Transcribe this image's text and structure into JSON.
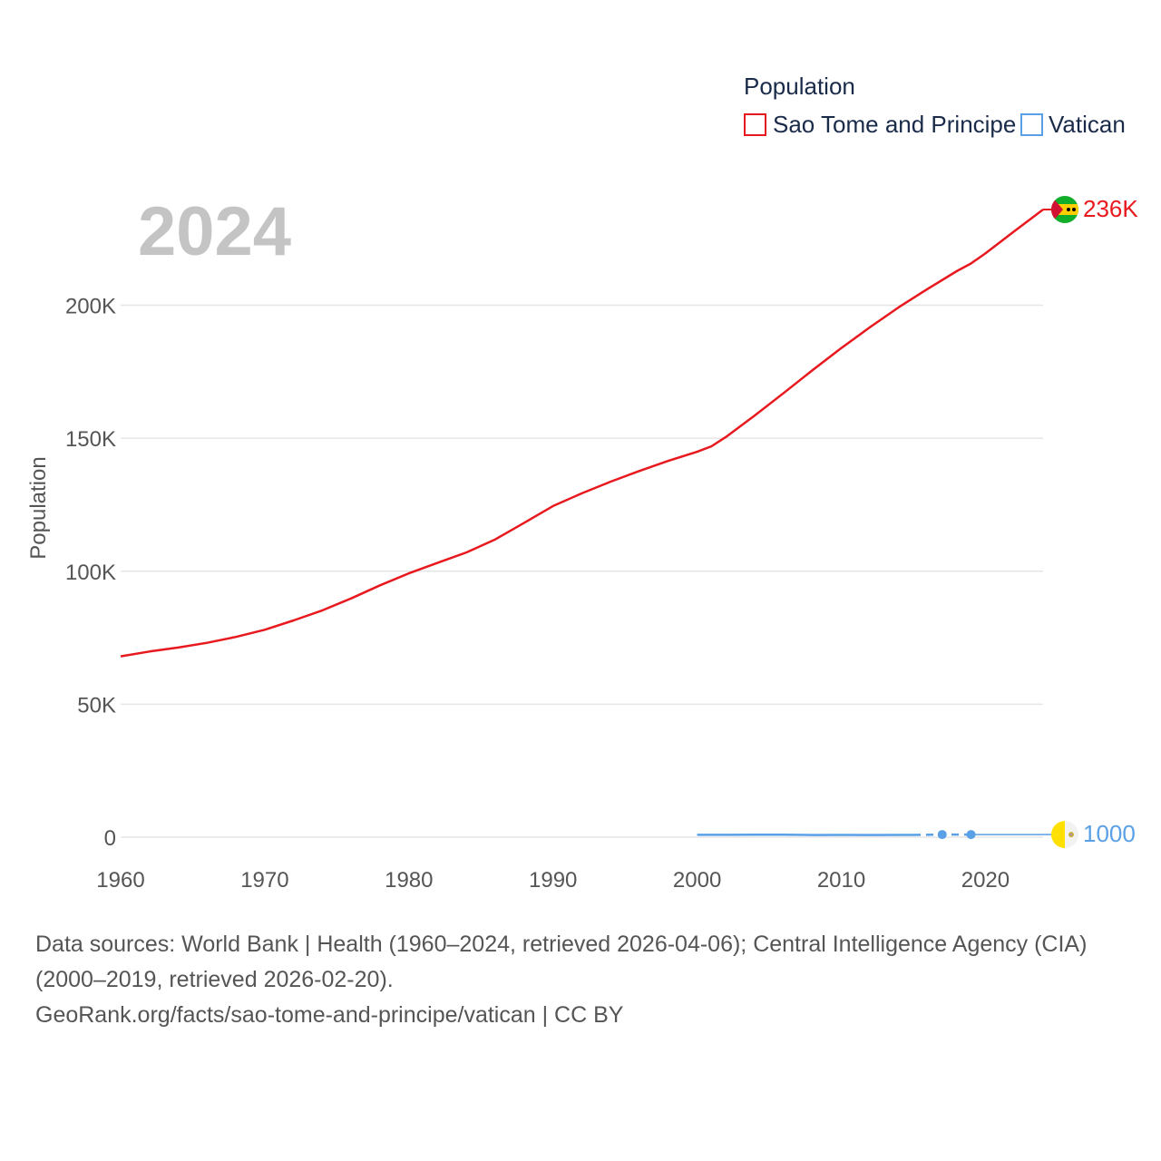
{
  "chart_data": {
    "type": "line",
    "year_label": "2024",
    "ylabel": "Population",
    "ylim": [
      0,
      236000
    ],
    "xlim": [
      1960,
      2024
    ],
    "y_ticks": [
      {
        "value": 0,
        "label": "0"
      },
      {
        "value": 50000,
        "label": "50K"
      },
      {
        "value": 100000,
        "label": "100K"
      },
      {
        "value": 150000,
        "label": "150K"
      },
      {
        "value": 200000,
        "label": "200K"
      }
    ],
    "x_ticks": [
      {
        "value": 1960,
        "label": "1960"
      },
      {
        "value": 1970,
        "label": "1970"
      },
      {
        "value": 1980,
        "label": "1980"
      },
      {
        "value": 1990,
        "label": "1990"
      },
      {
        "value": 2000,
        "label": "2000"
      },
      {
        "value": 2010,
        "label": "2010"
      },
      {
        "value": 2020,
        "label": "2020"
      }
    ],
    "legend": {
      "title": "Population",
      "position": "top-right",
      "items": [
        {
          "name": "Sao Tome and Principe",
          "color": "#e8191e"
        },
        {
          "name": "Vatican",
          "color": "#5aa0e6"
        }
      ]
    },
    "series": [
      {
        "name": "Sao Tome and Principe",
        "color": "#e8191e",
        "end_label": "236K",
        "flag_icon": "sao-tome-flag-icon",
        "x": [
          1960,
          1962,
          1964,
          1966,
          1968,
          1970,
          1972,
          1974,
          1976,
          1978,
          1980,
          1982,
          1984,
          1986,
          1988,
          1990,
          1992,
          1994,
          1996,
          1998,
          2000,
          2001,
          2002,
          2004,
          2006,
          2008,
          2010,
          2012,
          2014,
          2016,
          2018,
          2019,
          2020,
          2022,
          2024
        ],
        "values": [
          68000,
          69800,
          71300,
          73100,
          75300,
          78000,
          81500,
          85300,
          89800,
          94700,
          99200,
          103200,
          107100,
          112000,
          118200,
          124500,
          129300,
          133700,
          137700,
          141500,
          144900,
          147000,
          150500,
          158600,
          167000,
          175600,
          183900,
          191800,
          199300,
          206200,
          212800,
          215700,
          219500,
          227800,
          236000
        ]
      },
      {
        "name": "Vatican",
        "color": "#5aa0e6",
        "end_label": "1000",
        "flag_icon": "vatican-flag-icon",
        "x": [
          2000,
          2002,
          2004,
          2006,
          2008,
          2010,
          2012,
          2014,
          2015,
          2017,
          2019,
          2024
        ],
        "values": [
          880,
          900,
          920,
          920,
          830,
          840,
          830,
          840,
          840,
          1000,
          1000,
          1000
        ],
        "markers": [
          {
            "x": 2017,
            "value": 1000
          },
          {
            "x": 2019,
            "value": 1000
          }
        ],
        "dashed_from": 2015,
        "dashed_to": 2019
      }
    ]
  },
  "footer": {
    "sources": "Data sources: World Bank | Health (1960–2024, retrieved 2026-04-06); Central Intelligence Agency (CIA) (2000–2019, retrieved 2026-02-20).",
    "credit": "GeoRank.org/facts/sao-tome-and-principe/vatican | CC BY"
  }
}
